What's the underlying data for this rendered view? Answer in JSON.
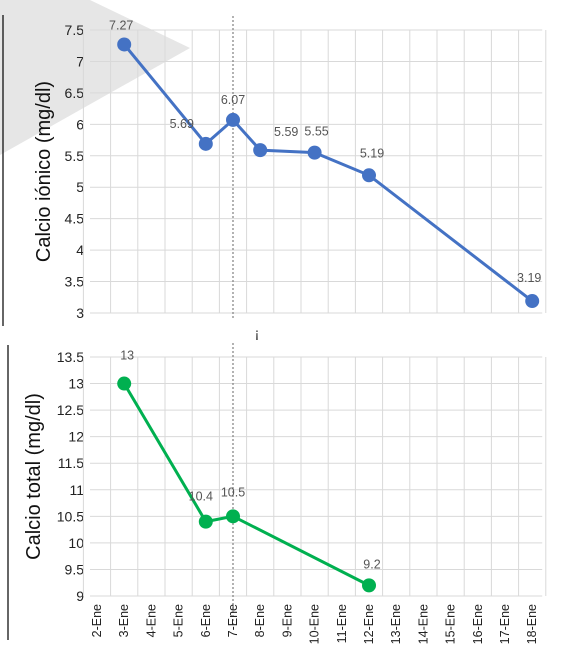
{
  "chart_data": [
    {
      "type": "line",
      "ylabel": "Calcio iónico (mg/dl)",
      "ylim": [
        3,
        7.5
      ],
      "yticks": [
        "3",
        "3.5",
        "4",
        "4.5",
        "5",
        "5.5",
        "6",
        "6.5",
        "7",
        "7.5"
      ],
      "x": [
        "3-Ene",
        "6-Ene",
        "7-Ene",
        "8-Ene",
        "10-Ene",
        "12-Ene",
        "18-Ene"
      ],
      "series": [
        {
          "values": [
            7.27,
            5.69,
            6.07,
            5.59,
            5.55,
            5.19,
            3.19
          ],
          "labels": [
            "7.27",
            "5.69",
            "6.07",
            "5.59",
            "5.55",
            "5.19",
            "3.19"
          ],
          "color": "#4472c4"
        }
      ],
      "marker_line_at": "7-Ene",
      "grid": true
    },
    {
      "type": "line",
      "ylabel": "Calcio total (mg/dl)",
      "ylim": [
        9,
        13.5
      ],
      "yticks": [
        "9",
        "9.5",
        "10",
        "10.5",
        "11",
        "11.5",
        "12",
        "12.5",
        "13",
        "13.5"
      ],
      "x": [
        "3-Ene",
        "6-Ene",
        "7-Ene",
        "12-Ene"
      ],
      "series": [
        {
          "values": [
            13,
            10.4,
            10.5,
            9.2
          ],
          "labels": [
            "13",
            "10.4",
            "10.5",
            "9.2"
          ],
          "color": "#00b050"
        }
      ],
      "marker_line_at": "7-Ene",
      "grid": true
    }
  ],
  "x_axis": {
    "categories": [
      "2-Ene",
      "3-Ene",
      "4-Ene",
      "5-Ene",
      "6-Ene",
      "7-Ene",
      "8-Ene",
      "9-Ene",
      "10-Ene",
      "11-Ene",
      "12-Ene",
      "13-Ene",
      "14-Ene",
      "15-Ene",
      "16-Ene",
      "17-Ene",
      "18-Ene"
    ]
  },
  "colors": {
    "grid": "#d9d9d9",
    "marker_line": "#808080",
    "watermark": "#e0e0e0"
  },
  "gap_glyph": "¡"
}
